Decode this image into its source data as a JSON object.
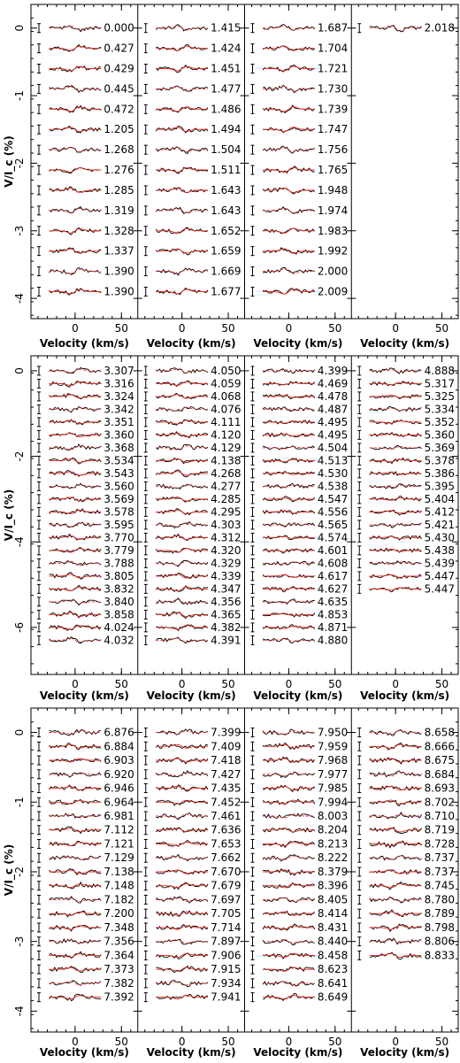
{
  "chart_data": [
    {
      "type": "line",
      "ylabel": "V/I_c (%)",
      "xlabel": "Velocity (km/s)",
      "ylim": [
        -4.3,
        0.35
      ],
      "y_ticks": [
        0,
        -1,
        -2,
        -3,
        -4
      ],
      "x_ticks": [
        0,
        50
      ],
      "xlim": [
        -40,
        60
      ],
      "offset_step": 0.3,
      "columns": [
        [
          "0.000",
          "0.427",
          "0.429",
          "0.445",
          "0.472",
          "1.205",
          "1.268",
          "1.276",
          "1.285",
          "1.319",
          "1.328",
          "1.337",
          "1.390",
          "1.390"
        ],
        [
          "1.415",
          "1.424",
          "1.451",
          "1.477",
          "1.486",
          "1.494",
          "1.504",
          "1.511",
          "1.643",
          "1.643",
          "1.652",
          "1.659",
          "1.669",
          "1.677"
        ],
        [
          "1.687",
          "1.704",
          "1.721",
          "1.730",
          "1.739",
          "1.747",
          "1.756",
          "1.765",
          "1.948",
          "1.974",
          "1.983",
          "1.992",
          "2.000",
          "2.009"
        ],
        [
          "2.018"
        ]
      ]
    },
    {
      "type": "line",
      "ylabel": "V/I_c (%)",
      "xlabel": "Velocity (km/s)",
      "ylim": [
        -7.1,
        0.35
      ],
      "y_ticks": [
        0,
        -2,
        -4,
        -6
      ],
      "x_ticks": [
        0,
        50
      ],
      "xlim": [
        -40,
        60
      ],
      "offset_step": 0.3,
      "columns": [
        [
          "3.307",
          "3.316",
          "3.324",
          "3.342",
          "3.351",
          "3.360",
          "3.368",
          "3.534",
          "3.543",
          "3.560",
          "3.569",
          "3.578",
          "3.595",
          "3.770",
          "3.779",
          "3.788",
          "3.805",
          "3.832",
          "3.840",
          "3.858",
          "4.024",
          "4.032"
        ],
        [
          "4.050",
          "4.059",
          "4.068",
          "4.076",
          "4.111",
          "4.120",
          "4.129",
          "4.138",
          "4.268",
          "4.277",
          "4.285",
          "4.295",
          "4.303",
          "4.312",
          "4.320",
          "4.329",
          "4.339",
          "4.347",
          "4.356",
          "4.365",
          "4.382",
          "4.391"
        ],
        [
          "4.399",
          "4.469",
          "4.478",
          "4.487",
          "4.495",
          "4.495",
          "4.504",
          "4.513",
          "4.530",
          "4.538",
          "4.547",
          "4.556",
          "4.565",
          "4.574",
          "4.601",
          "4.608",
          "4.617",
          "4.627",
          "4.635",
          "4.853",
          "4.871",
          "4.880"
        ],
        [
          "4.888",
          "5.317",
          "5.325",
          "5.334",
          "5.352",
          "5.360",
          "5.369",
          "5.378",
          "5.386",
          "5.395",
          "5.404",
          "5.412",
          "5.421",
          "5.430",
          "5.438",
          "5.439",
          "5.447",
          "5.447"
        ]
      ]
    },
    {
      "type": "line",
      "ylabel": "V/I_c (%)",
      "xlabel": "Velocity (km/s)",
      "ylim": [
        -4.3,
        0.35
      ],
      "y_ticks": [
        0,
        -1,
        -2,
        -3,
        -4
      ],
      "x_ticks": [
        0,
        50
      ],
      "xlim": [
        -40,
        60
      ],
      "offset_step": 0.2,
      "columns": [
        [
          "6.876",
          "6.884",
          "6.903",
          "6.920",
          "6.946",
          "6.964",
          "6.981",
          "7.112",
          "7.121",
          "7.129",
          "7.138",
          "7.148",
          "7.182",
          "7.200",
          "7.348",
          "7.356",
          "7.364",
          "7.373",
          "7.382",
          "7.392"
        ],
        [
          "7.399",
          "7.409",
          "7.418",
          "7.427",
          "7.435",
          "7.452",
          "7.461",
          "7.636",
          "7.653",
          "7.662",
          "7.670",
          "7.679",
          "7.697",
          "7.705",
          "7.714",
          "7.897",
          "7.906",
          "7.915",
          "7.934",
          "7.941"
        ],
        [
          "7.950",
          "7.959",
          "7.968",
          "7.977",
          "7.985",
          "7.994",
          "8.003",
          "8.204",
          "8.213",
          "8.222",
          "8.379",
          "8.396",
          "8.405",
          "8.414",
          "8.431",
          "8.440",
          "8.458",
          "8.623",
          "8.641",
          "8.649"
        ],
        [
          "8.658",
          "8.666",
          "8.675",
          "8.684",
          "8.693",
          "8.702",
          "8.710",
          "8.719",
          "8.728",
          "8.737",
          "8.737",
          "8.745",
          "8.780",
          "8.789",
          "8.798",
          "8.806",
          "8.833"
        ]
      ]
    }
  ]
}
